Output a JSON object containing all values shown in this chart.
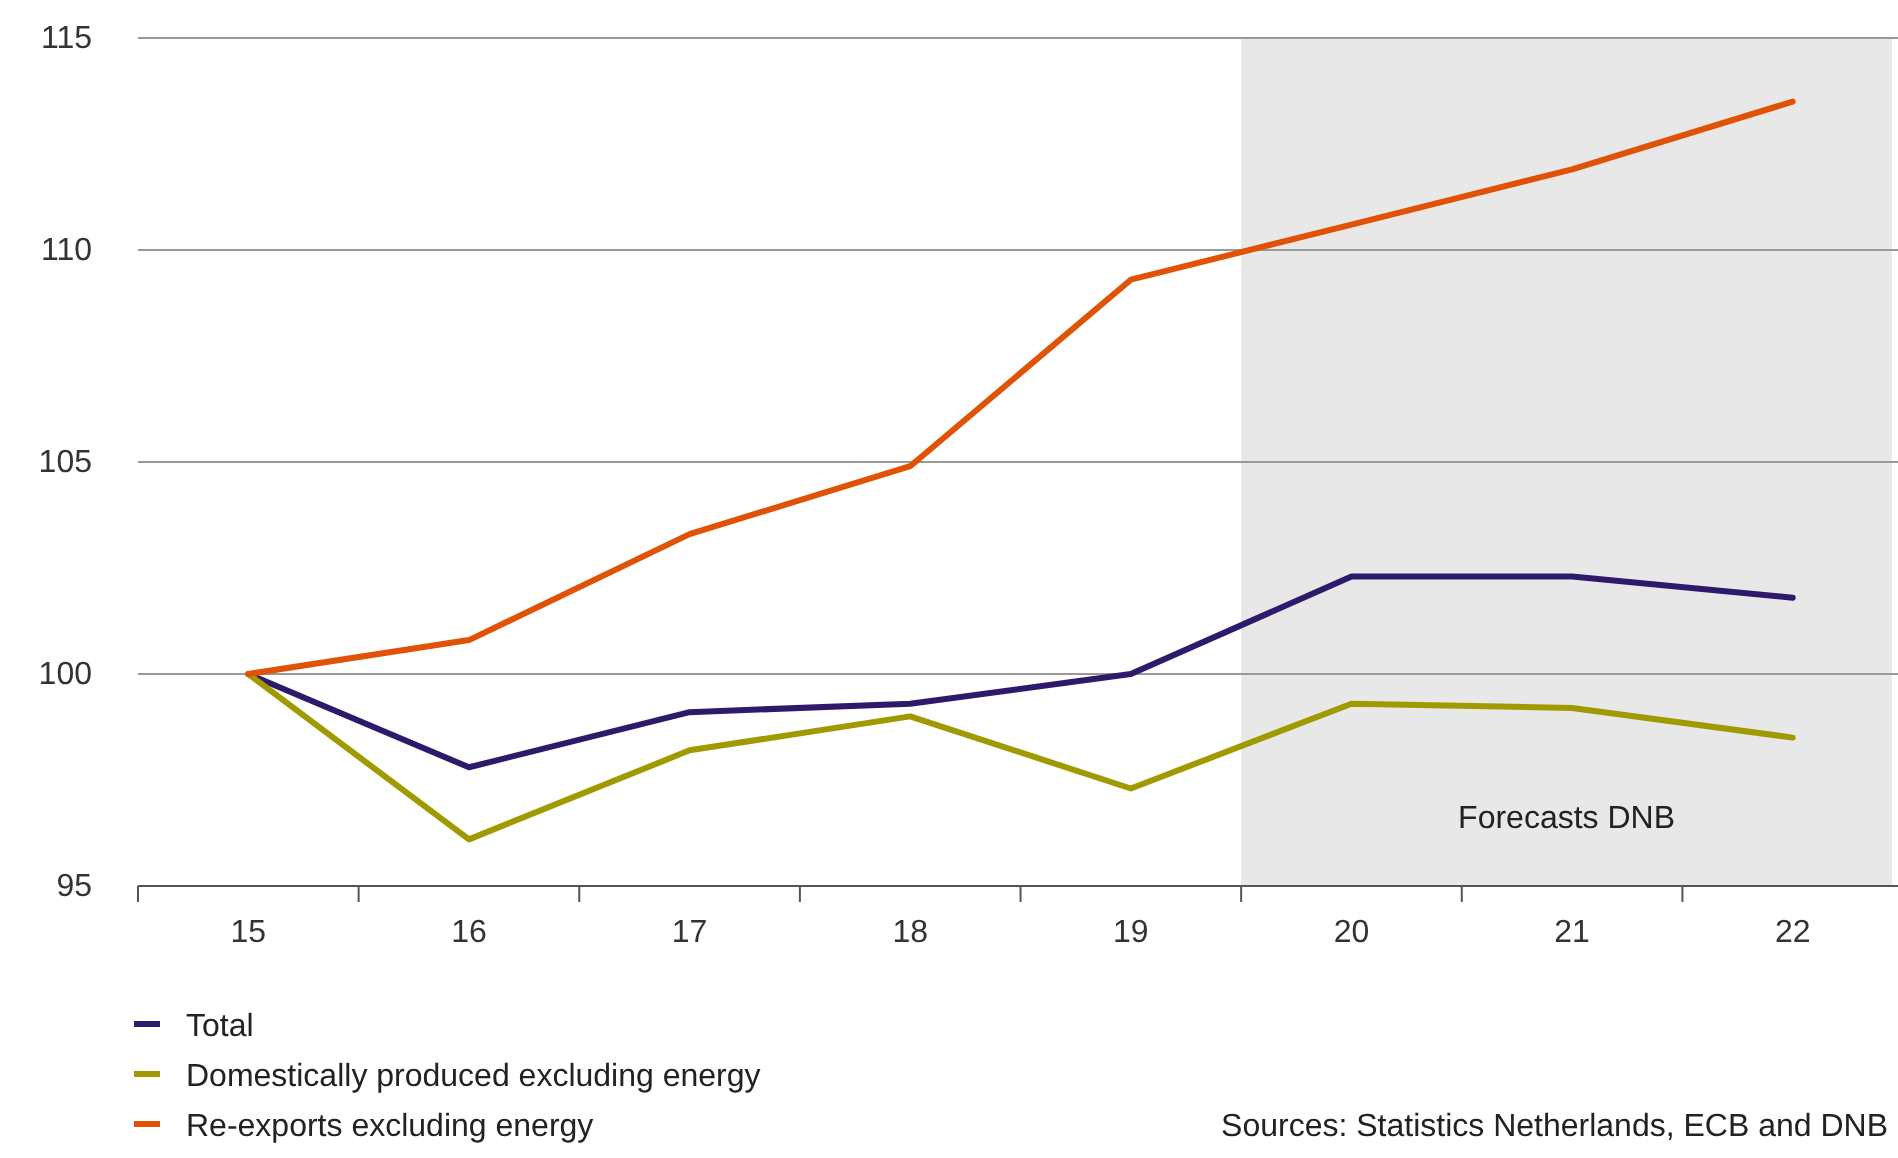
{
  "chart_data": {
    "type": "line",
    "x": [
      15,
      16,
      17,
      18,
      19,
      20,
      21,
      22
    ],
    "series": [
      {
        "name": "Total",
        "color": "#2e1a6b",
        "values": [
          100,
          97.8,
          99.1,
          99.3,
          100,
          102.3,
          102.3,
          101.8
        ]
      },
      {
        "name": "Domestically produced excluding energy",
        "color": "#a09a00",
        "values": [
          100,
          96.1,
          98.2,
          99.0,
          97.3,
          99.3,
          99.2,
          98.5
        ]
      },
      {
        "name": "Re-exports excluding energy",
        "color": "#e05206",
        "values": [
          100,
          100.8,
          103.3,
          104.9,
          109.3,
          110.6,
          111.9,
          113.5
        ]
      }
    ],
    "xlim": [
      14.5,
      22.45
    ],
    "xticks": [
      {
        "value": 14.5,
        "label": null
      },
      15,
      {
        "value": 15.5,
        "label": null
      },
      16,
      {
        "value": 16.5,
        "label": null
      },
      17,
      {
        "value": 17.5,
        "label": null
      },
      18,
      {
        "value": 18.5,
        "label": null
      },
      19,
      {
        "value": 19.5,
        "label": null
      },
      20,
      {
        "value": 20.5,
        "label": null
      },
      21,
      {
        "value": 21.5,
        "label": null
      },
      22
    ],
    "ylim": [
      95,
      115
    ],
    "yticks": [
      95,
      100,
      105,
      110,
      115
    ],
    "grid": "y",
    "legend": "bottom",
    "marker": "none",
    "line_style": "solid",
    "bands": [
      {
        "axis": "x",
        "from": 19.5,
        "to": 22.45,
        "label": "Forecasts DNB",
        "color": "#e8e8e8"
      }
    ],
    "annotations": [
      "Sources: Statistics Netherlands, ECB and DNB"
    ]
  }
}
